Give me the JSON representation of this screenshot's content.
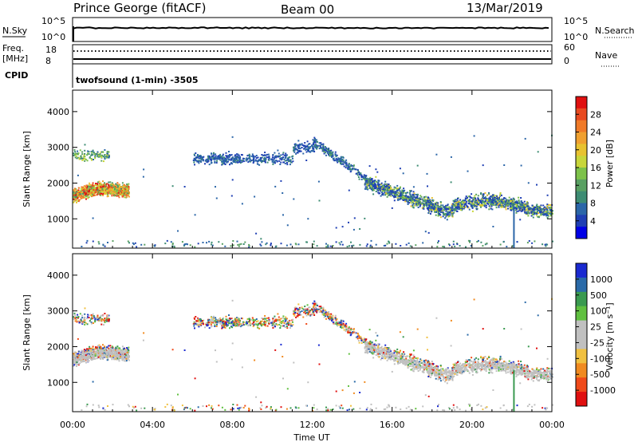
{
  "header": {
    "station": "Prince George (fitACF)",
    "beam": "Beam 00",
    "date": "13/Mar/2019"
  },
  "summary_panels": {
    "nsky_label": "N.Sky",
    "nsky_ticks": [
      "10^5",
      "10^0"
    ],
    "nsearch_label": "N.Search",
    "nsearch_ticks": [
      "10^5",
      "10^0"
    ],
    "freq_label": "Freq.",
    "freq_unit": "[MHz]",
    "freq_ticks": [
      "18",
      "8"
    ],
    "nave_label": "Nave",
    "nave_ticks": [
      "60",
      "0"
    ],
    "cpid_label": "CPID",
    "cpid_text": "twofsound (1-min) -3505"
  },
  "colors": {
    "power": [
      "#0000e6",
      "#1f3fb4",
      "#2b66a8",
      "#3d8c73",
      "#59a062",
      "#7dc24a",
      "#c8d63a",
      "#e8c230",
      "#f0a030",
      "#f07a28",
      "#e84a20",
      "#e01010"
    ],
    "velocity": [
      "#e01010",
      "#f04a1a",
      "#f08a20",
      "#f0c040",
      "#c0c0c0",
      "#c0c0c0",
      "#60c040",
      "#3a9a50",
      "#2a6aa8",
      "#1a2ad0"
    ]
  },
  "chart_data": [
    {
      "type": "heatmap",
      "ylabel": "Slant Range [km]",
      "ylim": [
        180,
        4600
      ],
      "yticks": [
        1000,
        2000,
        3000,
        4000
      ],
      "xlim": [
        0,
        24
      ],
      "colorbar_label": "Power [dB]",
      "colorbar_ticks": [
        4,
        8,
        12,
        16,
        20,
        24,
        28
      ],
      "colorbar_range": [
        0,
        32
      ]
    },
    {
      "type": "heatmap",
      "ylabel": "Slant Range [km]",
      "xlabel": "Time UT",
      "ylim": [
        180,
        4600
      ],
      "yticks": [
        1000,
        2000,
        3000,
        4000
      ],
      "xlim": [
        0,
        24
      ],
      "xticks": [
        "00:00",
        "04:00",
        "08:00",
        "12:00",
        "16:00",
        "20:00",
        "00:00"
      ],
      "colorbar_label": "Velocity [m s⁻¹]",
      "colorbar_ticks": [
        "1000",
        "500",
        "100",
        "25",
        "-25",
        "-100",
        "-500",
        "-1000"
      ]
    }
  ]
}
